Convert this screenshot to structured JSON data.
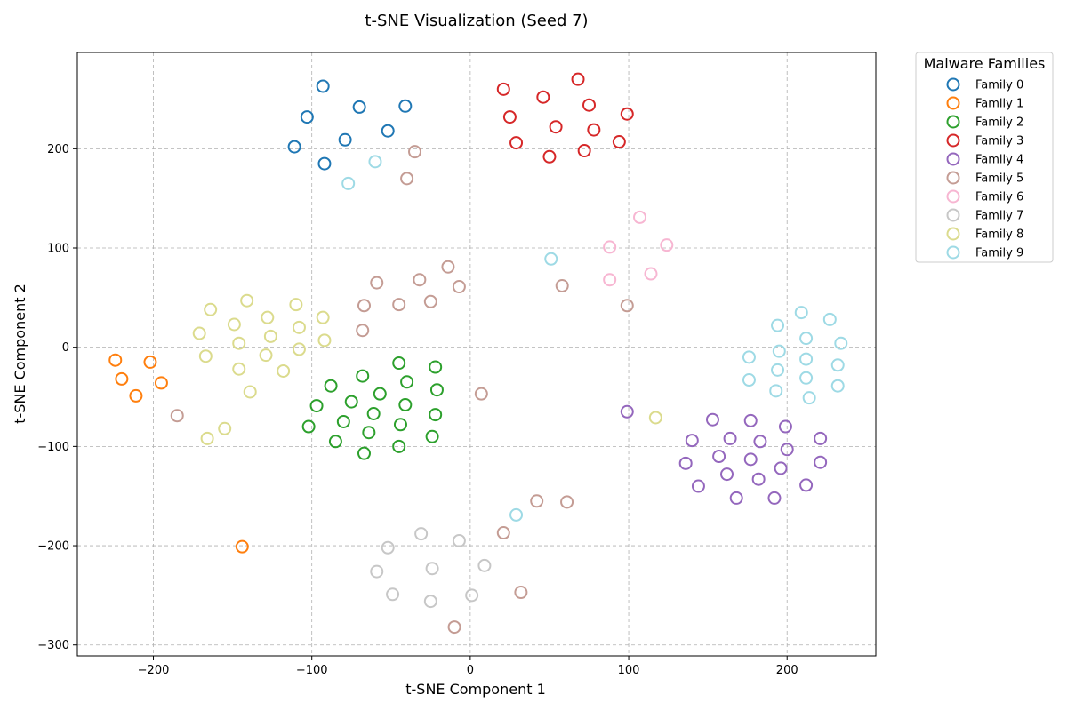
{
  "chart_data": {
    "type": "scatter",
    "title": "t-SNE Visualization (Seed 7)",
    "xlabel": "t-SNE Component 1",
    "ylabel": "t-SNE Component 2",
    "xlim": [
      -248,
      256
    ],
    "ylim": [
      -311,
      297
    ],
    "xticks": [
      -200,
      -100,
      0,
      100,
      200
    ],
    "yticks": [
      -300,
      -200,
      -100,
      0,
      100,
      200
    ],
    "xtick_labels": [
      "−200",
      "−100",
      "0",
      "100",
      "200"
    ],
    "ytick_labels": [
      "−300",
      "−200",
      "−100",
      "0",
      "100",
      "200"
    ],
    "grid": true,
    "legend_title": "Malware Families",
    "legend_position": "outside-right",
    "marker": "hollow-circle",
    "series": [
      {
        "name": "Family 0",
        "color": "#1f77b4",
        "points": [
          [
            -93,
            263
          ],
          [
            -103,
            232
          ],
          [
            -70,
            242
          ],
          [
            -41,
            243
          ],
          [
            -52,
            218
          ],
          [
            -79,
            209
          ],
          [
            -111,
            202
          ],
          [
            -92,
            185
          ]
        ]
      },
      {
        "name": "Family 1",
        "color": "#ff7f0e",
        "points": [
          [
            -224,
            -13
          ],
          [
            -220,
            -32
          ],
          [
            -202,
            -15
          ],
          [
            -195,
            -36
          ],
          [
            -211,
            -49
          ],
          [
            -144,
            -201
          ]
        ]
      },
      {
        "name": "Family 2",
        "color": "#2ca02c",
        "points": [
          [
            -45,
            -16
          ],
          [
            -22,
            -20
          ],
          [
            -68,
            -29
          ],
          [
            -40,
            -35
          ],
          [
            -88,
            -39
          ],
          [
            -21,
            -43
          ],
          [
            -57,
            -47
          ],
          [
            -75,
            -55
          ],
          [
            -41,
            -58
          ],
          [
            -97,
            -59
          ],
          [
            -61,
            -67
          ],
          [
            -22,
            -68
          ],
          [
            -80,
            -75
          ],
          [
            -44,
            -78
          ],
          [
            -102,
            -80
          ],
          [
            -64,
            -86
          ],
          [
            -24,
            -90
          ],
          [
            -85,
            -95
          ],
          [
            -45,
            -100
          ],
          [
            -67,
            -107
          ]
        ]
      },
      {
        "name": "Family 3",
        "color": "#d62728",
        "points": [
          [
            68,
            270
          ],
          [
            21,
            260
          ],
          [
            46,
            252
          ],
          [
            75,
            244
          ],
          [
            99,
            235
          ],
          [
            25,
            232
          ],
          [
            54,
            222
          ],
          [
            78,
            219
          ],
          [
            29,
            206
          ],
          [
            94,
            207
          ],
          [
            72,
            198
          ],
          [
            50,
            192
          ]
        ]
      },
      {
        "name": "Family 4",
        "color": "#9467bd",
        "points": [
          [
            99,
            -65
          ],
          [
            153,
            -73
          ],
          [
            177,
            -74
          ],
          [
            199,
            -80
          ],
          [
            140,
            -94
          ],
          [
            164,
            -92
          ],
          [
            183,
            -95
          ],
          [
            221,
            -92
          ],
          [
            200,
            -103
          ],
          [
            157,
            -110
          ],
          [
            177,
            -113
          ],
          [
            136,
            -117
          ],
          [
            196,
            -122
          ],
          [
            221,
            -116
          ],
          [
            162,
            -128
          ],
          [
            182,
            -133
          ],
          [
            144,
            -140
          ],
          [
            212,
            -139
          ],
          [
            168,
            -152
          ],
          [
            192,
            -152
          ]
        ]
      },
      {
        "name": "Family 5",
        "color": "#c49c94",
        "points": [
          [
            -35,
            197
          ],
          [
            -40,
            170
          ],
          [
            -14,
            81
          ],
          [
            -59,
            65
          ],
          [
            -32,
            68
          ],
          [
            -7,
            61
          ],
          [
            -25,
            46
          ],
          [
            -45,
            43
          ],
          [
            -67,
            42
          ],
          [
            -68,
            17
          ],
          [
            58,
            62
          ],
          [
            99,
            42
          ],
          [
            7,
            -47
          ],
          [
            -185,
            -69
          ],
          [
            42,
            -155
          ],
          [
            61,
            -156
          ],
          [
            21,
            -187
          ],
          [
            32,
            -247
          ],
          [
            -10,
            -282
          ]
        ]
      },
      {
        "name": "Family 6",
        "color": "#f7b6d2",
        "points": [
          [
            107,
            131
          ],
          [
            88,
            101
          ],
          [
            124,
            103
          ],
          [
            114,
            74
          ],
          [
            88,
            68
          ]
        ]
      },
      {
        "name": "Family 7",
        "color": "#c7c7c7",
        "points": [
          [
            -31,
            -188
          ],
          [
            -7,
            -195
          ],
          [
            -52,
            -202
          ],
          [
            -24,
            -223
          ],
          [
            9,
            -220
          ],
          [
            -59,
            -226
          ],
          [
            -49,
            -249
          ],
          [
            1,
            -250
          ],
          [
            -25,
            -256
          ]
        ]
      },
      {
        "name": "Family 8",
        "color": "#dbdb8d",
        "points": [
          [
            -141,
            47
          ],
          [
            -110,
            43
          ],
          [
            -164,
            38
          ],
          [
            -128,
            30
          ],
          [
            -93,
            30
          ],
          [
            -149,
            23
          ],
          [
            -108,
            20
          ],
          [
            -171,
            14
          ],
          [
            -126,
            11
          ],
          [
            -92,
            7
          ],
          [
            -146,
            4
          ],
          [
            -108,
            -2
          ],
          [
            -167,
            -9
          ],
          [
            -129,
            -8
          ],
          [
            -146,
            -22
          ],
          [
            -118,
            -24
          ],
          [
            -139,
            -45
          ],
          [
            -155,
            -82
          ],
          [
            -166,
            -92
          ],
          [
            117,
            -71
          ]
        ]
      },
      {
        "name": "Family 9",
        "color": "#9edae5",
        "points": [
          [
            -60,
            187
          ],
          [
            -77,
            165
          ],
          [
            51,
            89
          ],
          [
            209,
            35
          ],
          [
            194,
            22
          ],
          [
            227,
            28
          ],
          [
            212,
            9
          ],
          [
            234,
            4
          ],
          [
            195,
            -4
          ],
          [
            176,
            -10
          ],
          [
            212,
            -12
          ],
          [
            232,
            -18
          ],
          [
            194,
            -23
          ],
          [
            176,
            -33
          ],
          [
            212,
            -31
          ],
          [
            232,
            -39
          ],
          [
            193,
            -44
          ],
          [
            214,
            -51
          ],
          [
            29,
            -169
          ]
        ]
      }
    ]
  }
}
